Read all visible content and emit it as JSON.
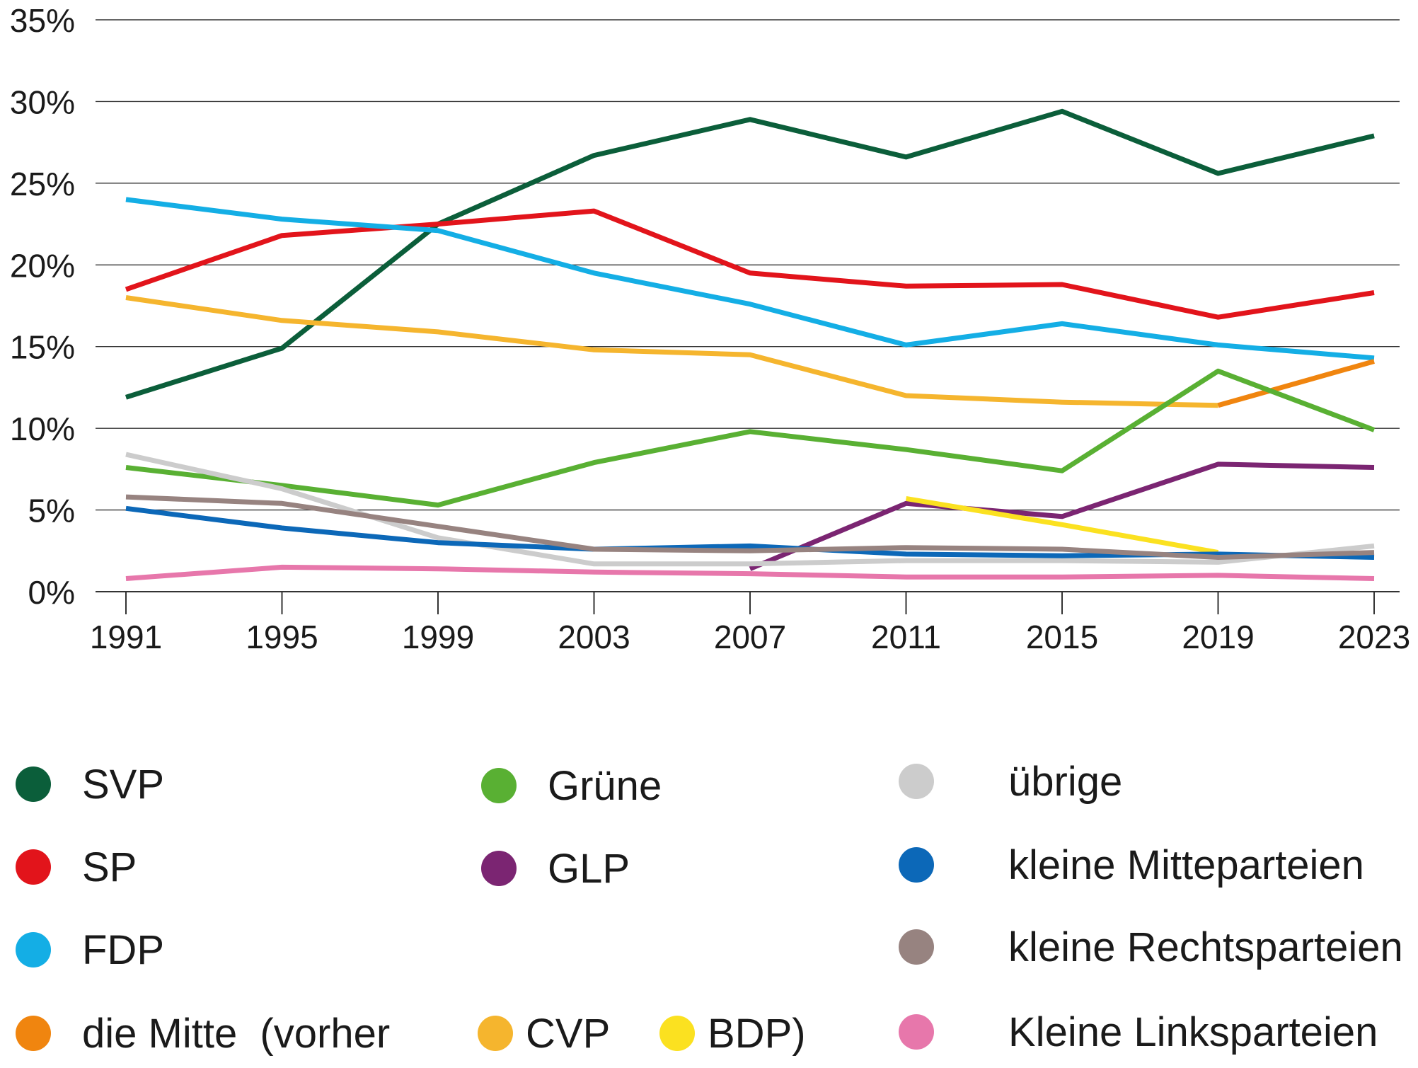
{
  "chart_data": {
    "type": "line",
    "title": "",
    "xlabel": "",
    "ylabel": "",
    "x": [
      "1991",
      "1995",
      "1999",
      "2003",
      "2007",
      "2011",
      "2015",
      "2019",
      "2023"
    ],
    "ylim": [
      0,
      35
    ],
    "yticks": [
      0,
      5,
      10,
      15,
      20,
      25,
      30,
      35
    ],
    "ytick_labels": [
      "0%",
      "5%",
      "10%",
      "15%",
      "20%",
      "25%",
      "30%",
      "35%"
    ],
    "grid": "horizontal",
    "legend_position": "bottom",
    "series": [
      {
        "name": "SVP",
        "color": "#0b5e3a",
        "values": [
          11.9,
          14.9,
          22.5,
          26.7,
          28.9,
          26.6,
          29.4,
          25.6,
          27.9
        ]
      },
      {
        "name": "SP",
        "color": "#e2141b",
        "values": [
          18.5,
          21.8,
          22.5,
          23.3,
          19.5,
          18.7,
          18.8,
          16.8,
          18.3
        ]
      },
      {
        "name": "FDP",
        "color": "#14aee5",
        "values": [
          24.0,
          22.8,
          22.1,
          19.5,
          17.6,
          15.1,
          16.4,
          15.1,
          14.3
        ]
      },
      {
        "name": "CVP",
        "color": "#f5b52e",
        "values": [
          18.0,
          16.6,
          15.9,
          14.8,
          14.5,
          12.0,
          11.6,
          11.4,
          null
        ]
      },
      {
        "name": "die Mitte",
        "color": "#f0850f",
        "values": [
          null,
          null,
          null,
          null,
          null,
          null,
          null,
          11.4,
          14.1
        ]
      },
      {
        "name": "Grüne",
        "color": "#59b033",
        "values": [
          7.6,
          6.5,
          5.3,
          7.9,
          9.8,
          8.7,
          7.4,
          13.5,
          9.9
        ]
      },
      {
        "name": "GLP",
        "color": "#7b2572",
        "values": [
          null,
          null,
          null,
          null,
          1.4,
          5.4,
          4.6,
          7.8,
          7.6
        ]
      },
      {
        "name": "BDP",
        "color": "#fbe120",
        "values": [
          null,
          null,
          null,
          null,
          null,
          5.7,
          4.1,
          2.4,
          null
        ]
      },
      {
        "name": "übrige",
        "color": "#cccccc",
        "values": [
          8.4,
          6.3,
          3.3,
          1.7,
          1.7,
          1.9,
          1.9,
          1.8,
          2.8
        ]
      },
      {
        "name": "kleine Mitteparteien",
        "color": "#0c68b8",
        "values": [
          5.1,
          3.9,
          3.0,
          2.6,
          2.8,
          2.3,
          2.2,
          2.3,
          2.1
        ]
      },
      {
        "name": "kleine Rechtsparteien",
        "color": "#978380",
        "values": [
          5.8,
          5.4,
          4.0,
          2.6,
          2.5,
          2.7,
          2.6,
          2.1,
          2.4
        ]
      },
      {
        "name": "Kleine Linksparteien",
        "color": "#e777ab",
        "values": [
          0.8,
          1.5,
          1.4,
          1.2,
          1.1,
          0.9,
          0.9,
          1.0,
          0.8
        ]
      }
    ]
  },
  "legend": {
    "svp": "SVP",
    "sp": "SP",
    "fdp": "FDP",
    "mitte": "die Mitte  (vorher",
    "gruene": "Grüne",
    "glp": "GLP",
    "cvp": "CVP",
    "bdp": "BDP)",
    "uebrige": "übrige",
    "kleine_mitte": "kleine Mitteparteien",
    "kleine_rechts": "kleine Rechtsparteien",
    "kleine_links": "Kleine Linksparteien"
  }
}
